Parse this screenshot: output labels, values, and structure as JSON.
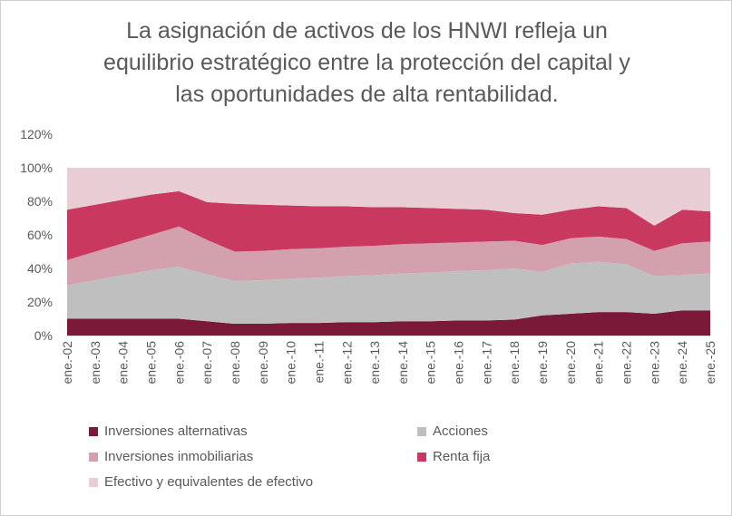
{
  "title_lines": [
    "La asignación de activos de los HNWI refleja un",
    "equilibrio estratégico entre la protección del capital y",
    "las oportunidades de alta rentabilidad."
  ],
  "colors": {
    "alternativas": "#7b1a38",
    "acciones": "#bfbfbf",
    "inmobiliarias": "#d3a1ad",
    "renta_fija": "#c9385f",
    "efectivo": "#e8cdd5",
    "axis_text": "#595959",
    "axis_line": "#d9d9d9"
  },
  "chart_data": {
    "type": "area",
    "stacked": true,
    "categories": [
      "ene.-02",
      "ene.-03",
      "ene.-04",
      "ene.-05",
      "ene.-06",
      "ene.-07",
      "ene.-08",
      "ene.-09",
      "ene.-10",
      "ene.-11",
      "ene.-12",
      "ene.-13",
      "ene.-14",
      "ene.-15",
      "ene.-16",
      "ene.-17",
      "ene.-18",
      "ene.-19",
      "ene.-20",
      "ene.-21",
      "ene.-22",
      "ene.-23",
      "ene.-24",
      "ene.-25"
    ],
    "y_ticks": [
      "0%",
      "20%",
      "40%",
      "60%",
      "80%",
      "100%",
      "120%"
    ],
    "ylim": [
      0,
      120
    ],
    "grid": false,
    "legend_position": "bottom",
    "series": [
      {
        "name": "Inversiones alternativas",
        "color_key": "alternativas",
        "values": [
          10,
          10,
          10,
          10,
          10,
          8.5,
          7,
          7,
          7.5,
          7.5,
          8,
          8,
          8.5,
          8.5,
          9,
          9,
          9.5,
          12,
          13,
          14,
          14,
          13,
          15,
          15
        ]
      },
      {
        "name": "Acciones",
        "color_key": "acciones",
        "values": [
          20,
          23,
          26,
          29,
          31,
          28,
          25.5,
          26,
          26.5,
          27,
          27.5,
          28,
          28.5,
          29,
          29.5,
          30,
          30.5,
          26,
          30,
          30,
          28.5,
          22.5,
          21,
          22
        ]
      },
      {
        "name": "Inversiones inmobiliarias",
        "color_key": "inmobiliarias",
        "values": [
          15,
          17,
          19,
          21,
          24,
          20.5,
          17.5,
          17.5,
          17.5,
          17.5,
          17.5,
          17.5,
          17.5,
          17.5,
          17,
          17,
          16.5,
          16,
          15,
          15,
          15,
          15,
          19,
          19
        ]
      },
      {
        "name": "Renta fija",
        "color_key": "renta_fija",
        "values": [
          30,
          28,
          26,
          24,
          21,
          22.5,
          28.5,
          27.5,
          26,
          25,
          24,
          23,
          22,
          21,
          20,
          19,
          16.5,
          18,
          17,
          18,
          18.5,
          15,
          20,
          18
        ]
      },
      {
        "name": "Efectivo y equivalentes de efectivo",
        "color_key": "efectivo",
        "values": [
          25,
          22,
          19,
          16,
          14,
          20.5,
          21.5,
          22,
          22.5,
          23,
          23,
          23.5,
          23.5,
          24,
          24.5,
          25,
          27,
          28,
          25,
          23,
          24,
          34.5,
          25,
          26
        ]
      }
    ]
  }
}
